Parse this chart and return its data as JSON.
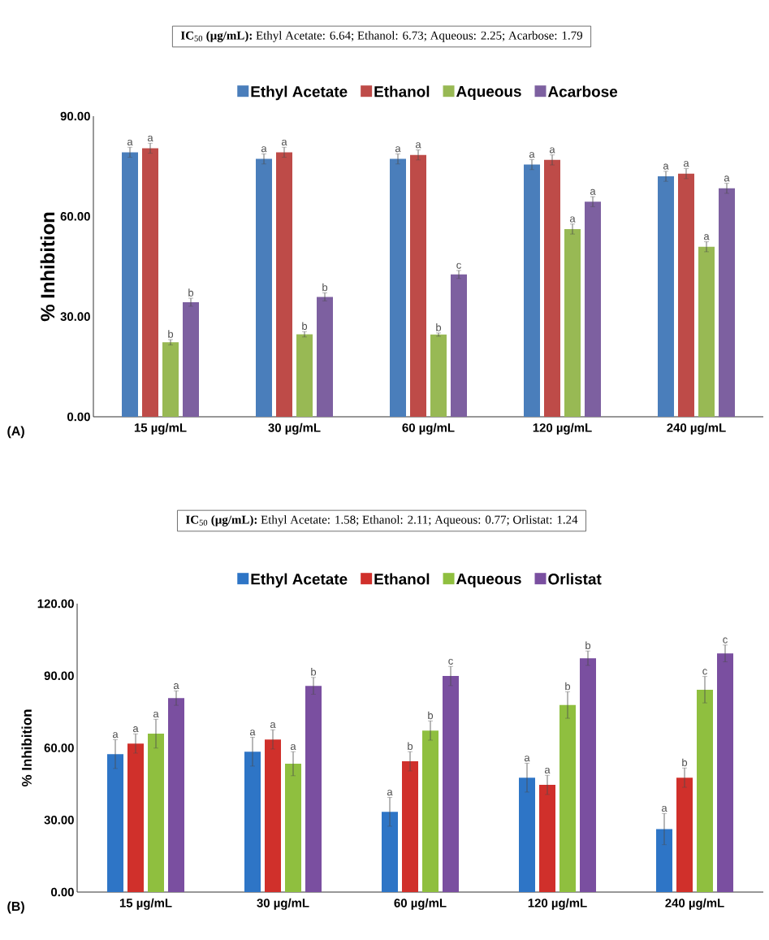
{
  "chart_data": [
    {
      "type": "bar",
      "title": "**IC**$_{50}$ **(µg/mL):** Ethyl Acetate: 6.64; Ethanol: 6.73; Aqueous: 2.25; Acarbose: 1.79",
      "ylabel": "% Inhibition",
      "legend": "top",
      "annotations": [
        "(A)"
      ],
      "categories": [
        "15 µg/mL",
        "30 µg/mL",
        "60 µg/mL",
        "120 µg/mL",
        "240 µg/mL"
      ],
      "ylim": [
        0,
        90
      ],
      "yticks": [
        {
          "value": 0,
          "label": "0.00"
        },
        {
          "value": 30,
          "label": "30.00"
        },
        {
          "value": 60,
          "label": "60.00"
        },
        {
          "value": 90,
          "label": "90.00"
        }
      ],
      "series": [
        {
          "name": "Ethyl Acetate",
          "color": "#4a7ebb",
          "values": [
            79.2,
            77.2,
            77.2,
            75.5,
            72.0
          ],
          "errors": [
            1.5,
            1.5,
            1.5,
            1.5,
            1.5
          ],
          "value_labels": [
            "a",
            "a",
            "a",
            "a",
            "a"
          ]
        },
        {
          "name": "Ethanol",
          "color": "#be4b48",
          "values": [
            80.4,
            79.2,
            78.4,
            76.9,
            72.8
          ],
          "errors": [
            1.5,
            1.5,
            1.5,
            1.5,
            1.5
          ],
          "value_labels": [
            "a",
            "a",
            "a",
            "a",
            "a"
          ]
        },
        {
          "name": "Aqueous",
          "color": "#98b954",
          "values": [
            22.3,
            24.7,
            24.6,
            56.2,
            50.9
          ],
          "errors": [
            0.8,
            0.8,
            0.5,
            1.5,
            1.5
          ],
          "value_labels": [
            "b",
            "b",
            "b",
            "a",
            "a"
          ]
        },
        {
          "name": "Acarbose",
          "color": "#7d60a0",
          "values": [
            34.3,
            35.9,
            42.6,
            64.4,
            68.4
          ],
          "errors": [
            1.2,
            1.2,
            1.2,
            1.5,
            1.5
          ],
          "value_labels": [
            "b",
            "b",
            "c",
            "a",
            "a"
          ]
        }
      ]
    },
    {
      "type": "bar",
      "title": "**IC**$_{50}$ **(µg/mL):** Ethyl Acetate: 1.58; Ethanol: 2.11; Aqueous: 0.77; Orlistat: 1.24",
      "ylabel": "% Inhibition",
      "legend": "top",
      "annotations": [
        "(B)"
      ],
      "categories": [
        "15 µg/mL",
        "30 µg/mL",
        "60 µg/mL",
        "120 µg/mL",
        "240 µg/mL"
      ],
      "ylim": [
        0,
        120
      ],
      "yticks": [
        {
          "value": 0,
          "label": "0.00"
        },
        {
          "value": 30,
          "label": "30.00"
        },
        {
          "value": 60,
          "label": "60.00"
        },
        {
          "value": 90,
          "label": "90.00"
        },
        {
          "value": 120,
          "label": "120.00"
        }
      ],
      "series": [
        {
          "name": "Ethyl Acetate",
          "color": "#2e75c6",
          "values": [
            57.4,
            58.4,
            33.4,
            47.6,
            26.2
          ],
          "errors": [
            6,
            6,
            6,
            6,
            6.5
          ],
          "value_labels": [
            "a",
            "a",
            "a",
            "a",
            "a"
          ]
        },
        {
          "name": "Ethanol",
          "color": "#d0302b",
          "values": [
            61.8,
            63.5,
            54.4,
            44.6,
            47.6
          ],
          "errors": [
            4,
            4,
            4,
            4,
            4
          ],
          "value_labels": [
            "a",
            "a",
            "b",
            "a",
            "b"
          ]
        },
        {
          "name": "Aqueous",
          "color": "#8fbf3f",
          "values": [
            65.9,
            53.4,
            67.2,
            77.8,
            84.2
          ],
          "errors": [
            6,
            5,
            4,
            5.5,
            5.5
          ],
          "value_labels": [
            "a",
            "a",
            "b",
            "b",
            "c"
          ]
        },
        {
          "name": "Orlistat",
          "color": "#7a4fa0",
          "values": [
            80.7,
            85.8,
            89.9,
            97.3,
            99.3
          ],
          "errors": [
            3,
            3.5,
            4,
            3,
            3.5
          ],
          "value_labels": [
            "a",
            "b",
            "c",
            "b",
            "c"
          ]
        }
      ]
    }
  ]
}
